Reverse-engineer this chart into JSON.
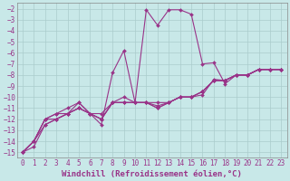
{
  "xlabel": "Windchill (Refroidissement éolien,°C)",
  "bg_color": "#c8e8e8",
  "grid_color": "#aacccc",
  "line_color": "#993388",
  "xlim": [
    -0.5,
    23.5
  ],
  "ylim": [
    -15.5,
    -1.5
  ],
  "xticks": [
    0,
    1,
    2,
    3,
    4,
    5,
    6,
    7,
    8,
    9,
    10,
    11,
    12,
    13,
    14,
    15,
    16,
    17,
    18,
    19,
    20,
    21,
    22,
    23
  ],
  "yticks": [
    -2,
    -3,
    -4,
    -5,
    -6,
    -7,
    -8,
    -9,
    -10,
    -11,
    -12,
    -13,
    -14,
    -15
  ],
  "series": [
    [
      -15.0,
      -14.0,
      -12.0,
      -12.0,
      -11.5,
      -10.5,
      -11.5,
      -12.5,
      -7.8,
      -5.8,
      -10.5,
      -2.1,
      -3.5,
      -2.1,
      -2.1,
      -2.5,
      -7.0,
      -6.9,
      -8.8,
      -8.0,
      -8.0,
      -7.5,
      -7.5,
      -7.5
    ],
    [
      -15.0,
      -14.0,
      -12.0,
      -11.5,
      -11.0,
      -10.5,
      -11.5,
      -12.0,
      -10.5,
      -10.0,
      -10.5,
      -10.5,
      -10.8,
      -10.5,
      -10.0,
      -10.0,
      -9.8,
      -8.4,
      -8.5,
      -8.0,
      -8.0,
      -7.5,
      -7.5,
      -7.5
    ],
    [
      -15.0,
      -14.0,
      -12.0,
      -11.5,
      -11.5,
      -11.0,
      -11.5,
      -11.5,
      -10.5,
      -10.5,
      -10.5,
      -10.5,
      -10.5,
      -10.5,
      -10.0,
      -10.0,
      -9.5,
      -8.5,
      -8.5,
      -8.0,
      -8.0,
      -7.5,
      -7.5,
      -7.5
    ],
    [
      -15.0,
      -14.0,
      -12.5,
      -12.0,
      -11.5,
      -11.0,
      -11.5,
      -12.0,
      -10.5,
      -10.5,
      -10.5,
      -10.5,
      -11.0,
      -10.5,
      -10.0,
      -10.0,
      -9.5,
      -8.5,
      -8.5,
      -8.0,
      -8.0,
      -7.5,
      -7.5,
      -7.5
    ],
    [
      -15.0,
      -14.5,
      -12.5,
      -12.0,
      -11.5,
      -11.0,
      -11.5,
      -12.0,
      -10.5,
      -10.5,
      -10.5,
      -10.5,
      -11.0,
      -10.5,
      -10.0,
      -10.0,
      -9.5,
      -8.5,
      -8.5,
      -8.0,
      -8.0,
      -7.5,
      -7.5,
      -7.5
    ]
  ],
  "marker": "D",
  "markersize": 2.0,
  "linewidth": 0.8,
  "xlabel_fontsize": 6.5,
  "tick_fontsize": 5.5,
  "tick_color": "#993388",
  "spine_color": "#888888"
}
